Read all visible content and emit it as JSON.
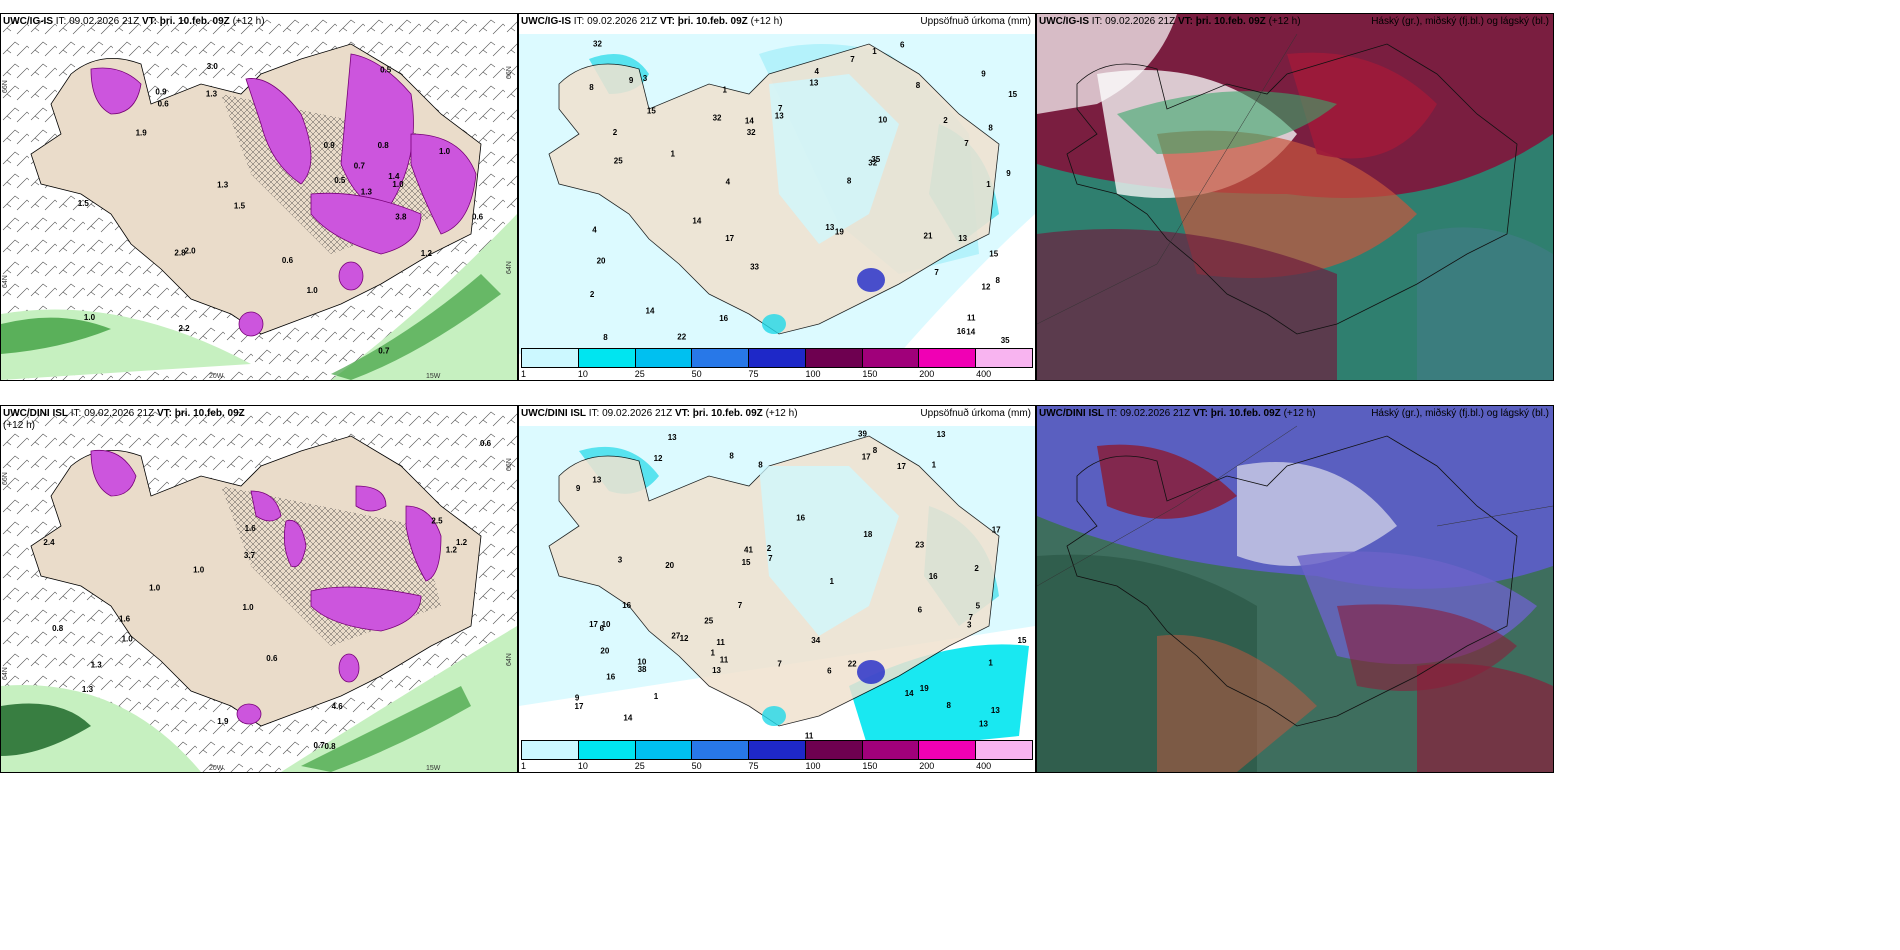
{
  "panels": {
    "p1": {
      "title_model": "UWC/IG-IS",
      "title_it_label": "IT:",
      "title_it": "09.02.2026 21Z",
      "title_vt_label": "VT:",
      "title_vt": "þri. 10.feb. 09Z",
      "title_lead": "(+12 h)"
    },
    "p2": {
      "title_model": "UWC/IG-IS",
      "title_it_label": "IT:",
      "title_it": "09.02.2026 21Z",
      "title_vt_label": "VT:",
      "title_vt": "þri. 10.feb. 09Z",
      "title_lead": "(+12 h)",
      "right_label": "Uppsöfnuð úrkoma (mm)"
    },
    "p3": {
      "title_model": "UWC/IG-IS",
      "title_it_label": "IT:",
      "title_it": "09.02.2026 21Z",
      "title_vt_label": "VT:",
      "title_vt": "þri. 10.feb. 09Z",
      "title_lead": "(+12 h)",
      "right_label": "Háský (gr.), miðský (fj.bl.) og lágský (bl.)"
    },
    "p4": {
      "title_model": "UWC/DINI ISL",
      "title_it_label": "IT:",
      "title_it": "09.02.2026 21Z",
      "title_vt_label": "VT:",
      "title_vt": "þri. 10.feb. 09Z",
      "title_lead": "(+12 h)"
    },
    "p5": {
      "title_model": "UWC/DINI ISL",
      "title_it_label": "IT:",
      "title_it": "09.02.2026 21Z",
      "title_vt_label": "VT:",
      "title_vt": "þri. 10.feb. 09Z",
      "title_lead": "(+12 h)",
      "right_label": "Uppsöfnuð úrkoma (mm)"
    },
    "p6": {
      "title_model": "UWC/DINI ISL",
      "title_it_label": "IT:",
      "title_it": "09.02.2026 21Z",
      "title_vt_label": "VT:",
      "title_vt": "þri. 10.feb. 09Z",
      "title_lead": "(+12 h)",
      "right_label": "Háský (gr.), miðský (fj.bl.) og lágský (bl.)"
    }
  },
  "axes": {
    "lat_66": "66N",
    "lat_64": "64N",
    "lon_20": "20W",
    "lon_15": "15W"
  },
  "legend": {
    "colors": [
      "#ccf8ff",
      "#00e5f0",
      "#00c0f0",
      "#2878e8",
      "#1e28c8",
      "#6e0050",
      "#a0007a",
      "#f000b4",
      "#f8b4f0"
    ],
    "ticks": [
      "1",
      "10",
      "25",
      "50",
      "75",
      "100",
      "150",
      "200",
      "400"
    ]
  },
  "p1_values": [
    "1.5",
    "0.6",
    "1.3",
    "2.8",
    "0.5",
    "1.4",
    "0.6",
    "0.8",
    "1.9",
    "0.9",
    "2.0",
    "1.0",
    "1.0",
    "1.3",
    "2.2",
    "1.0",
    "3.0",
    "0.5",
    "0.7",
    "0.6",
    "1.3",
    "0.9",
    "1.0",
    "0.7",
    "3.8",
    "1.2",
    "1.5"
  ],
  "p2_values": [
    "1",
    "1",
    "1",
    "14",
    "13",
    "2",
    "1",
    "2",
    "9",
    "13",
    "8",
    "9",
    "15",
    "11",
    "15",
    "13",
    "9",
    "8",
    "20",
    "7",
    "12",
    "8",
    "3",
    "6",
    "15",
    "16",
    "4",
    "7",
    "14",
    "32",
    "10",
    "32",
    "13",
    "4",
    "35",
    "22",
    "21",
    "19",
    "16",
    "17",
    "32",
    "25",
    "35",
    "33",
    "7",
    "8",
    "8",
    "7",
    "14",
    "14",
    "8",
    "2",
    "32",
    "4"
  ],
  "p4_values": [
    "1.0",
    "0.6",
    "2.4",
    "1.0",
    "1.9",
    "1.0",
    "1.3",
    "3.7",
    "1.6",
    "1.3",
    "0.6",
    "1.6",
    "0.7",
    "2.5",
    "4.6",
    "0.8",
    "1.2",
    "1.0",
    "0.8",
    "1.2"
  ],
  "p5_values": [
    "2",
    "1",
    "1",
    "1",
    "1",
    "8",
    "16",
    "13",
    "17",
    "6",
    "1",
    "8",
    "11",
    "17",
    "6",
    "13",
    "8",
    "12",
    "10",
    "20",
    "9",
    "15",
    "7",
    "41",
    "17",
    "2",
    "39",
    "38",
    "34",
    "3",
    "8",
    "10",
    "14",
    "3",
    "7",
    "9",
    "20",
    "19",
    "16",
    "12",
    "22",
    "23",
    "14",
    "27",
    "25",
    "5",
    "13",
    "17",
    "13",
    "16",
    "11",
    "11",
    "15",
    "16",
    "18",
    "17",
    "7",
    "6",
    "7",
    "13",
    "13"
  ]
}
